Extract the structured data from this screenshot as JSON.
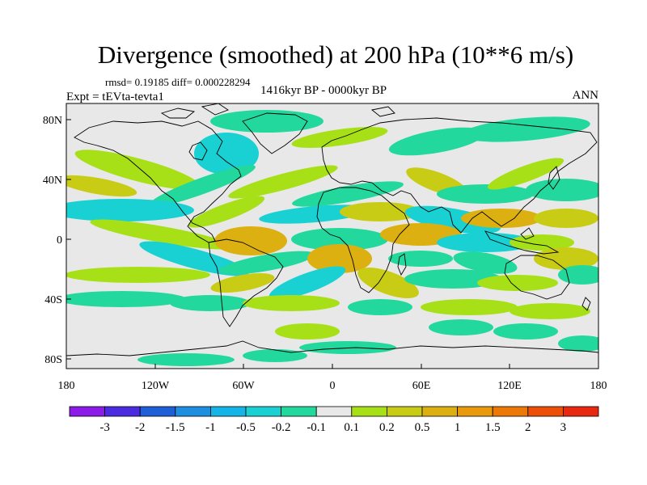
{
  "map": {
    "title": "Divergence (smoothed) at 200 hPa (10**6 m/s)",
    "stats": "rmsd= 0.19185 diff= 0.000228294",
    "experiment": "Expt = tEVta-tevta1",
    "period": "1416kyr BP - 0000kyr BP",
    "season": "ANN",
    "lat_labels": [
      "80N",
      "40N",
      "0",
      "40S",
      "80S"
    ],
    "lon_labels": [
      "180",
      "120W",
      "60W",
      "0",
      "60E",
      "120E",
      "180"
    ]
  },
  "colorbar": {
    "labels": [
      "-3",
      "-2",
      "-1.5",
      "-1",
      "-0.5",
      "-0.2",
      "-0.1",
      "0.1",
      "0.2",
      "0.5",
      "1",
      "1.5",
      "2",
      "3"
    ],
    "colors": [
      "#8c1be8",
      "#4a2be0",
      "#1e5fd8",
      "#1e8ee0",
      "#14b4e6",
      "#19d0d2",
      "#22d89c",
      "#e8e8e8",
      "#a8e018",
      "#c8cc14",
      "#dcb010",
      "#e89a0c",
      "#ec7808",
      "#ec5008",
      "#e82810"
    ]
  },
  "palette": {
    "neg_light": "#22d89c",
    "neg_mid": "#19d0d2",
    "neg_strong": "#14b4e6",
    "neutral": "#e8e8e8",
    "pos_light": "#a8e018",
    "pos_mid": "#c8cc14",
    "pos_strong": "#dcb010",
    "pos_max": "#e89a0c"
  }
}
